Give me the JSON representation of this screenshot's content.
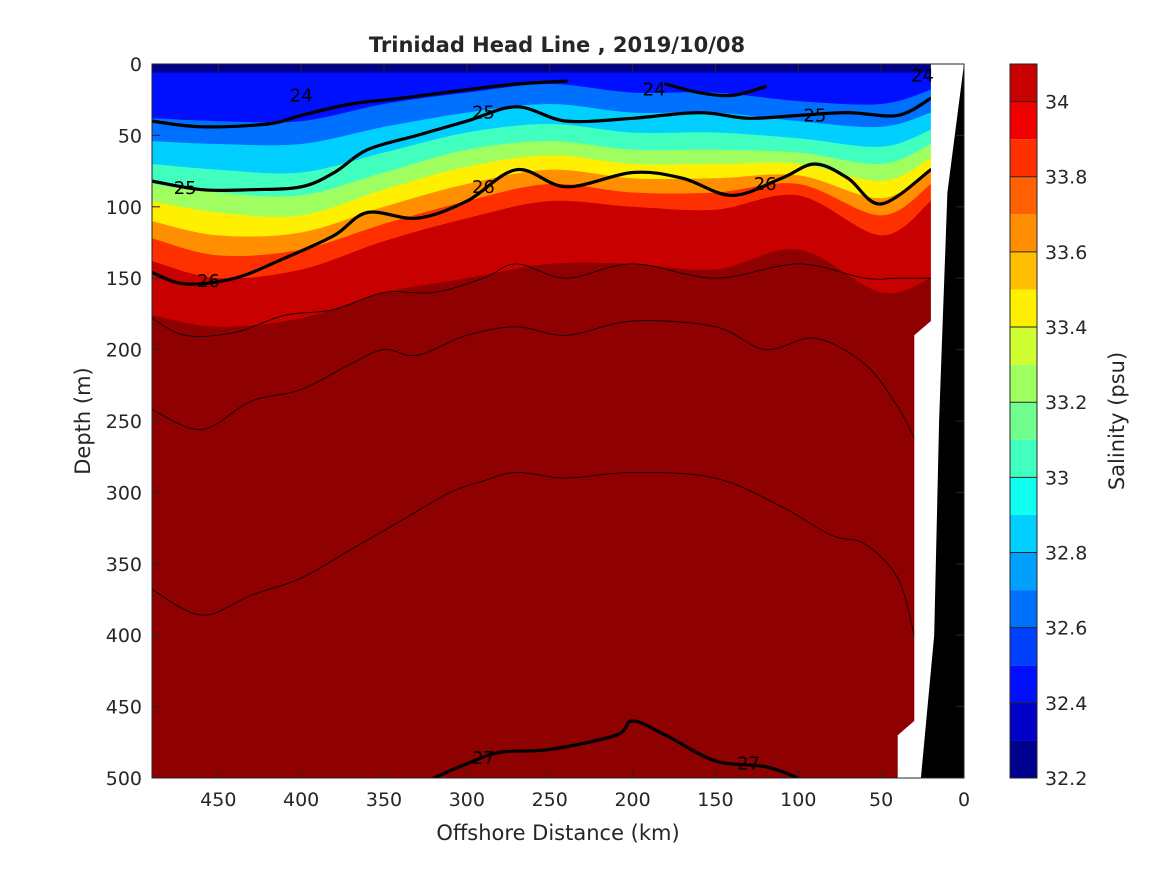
{
  "chart_data": {
    "type": "heatmap",
    "title": "Trinidad Head Line , 2019/10/08",
    "xlabel": "Offshore Distance (km)",
    "ylabel": "Depth (m)",
    "xlim": [
      490,
      0
    ],
    "ylim": [
      0,
      500
    ],
    "x_ticks": [
      "450",
      "400",
      "350",
      "300",
      "250",
      "200",
      "150",
      "100",
      "50",
      "0"
    ],
    "y_ticks": [
      "0",
      "50",
      "100",
      "150",
      "200",
      "250",
      "300",
      "350",
      "400",
      "450",
      "500"
    ],
    "colorbar": {
      "label": "Salinity (psu)",
      "range": [
        32.2,
        34.1
      ],
      "ticks": [
        "32.2",
        "32.4",
        "32.6",
        "32.8",
        "33",
        "33.2",
        "33.4",
        "33.6",
        "33.8",
        "34"
      ]
    },
    "salinity_levels": [
      {
        "min": 32.2,
        "max": 32.3,
        "color": "#00008f"
      },
      {
        "min": 32.3,
        "max": 32.4,
        "color": "#0000c8"
      },
      {
        "min": 32.4,
        "max": 32.5,
        "color": "#0010ff"
      },
      {
        "min": 32.5,
        "max": 32.6,
        "color": "#0040ff"
      },
      {
        "min": 32.6,
        "max": 32.7,
        "color": "#0070ff"
      },
      {
        "min": 32.7,
        "max": 32.8,
        "color": "#00a0ff"
      },
      {
        "min": 32.8,
        "max": 32.9,
        "color": "#00cfff"
      },
      {
        "min": 32.9,
        "max": 33.0,
        "color": "#10ffef"
      },
      {
        "min": 33.0,
        "max": 33.1,
        "color": "#40ffbf"
      },
      {
        "min": 33.1,
        "max": 33.2,
        "color": "#70ff8f"
      },
      {
        "min": 33.2,
        "max": 33.3,
        "color": "#a0ff60"
      },
      {
        "min": 33.3,
        "max": 33.4,
        "color": "#cfff30"
      },
      {
        "min": 33.4,
        "max": 33.5,
        "color": "#ffef00"
      },
      {
        "min": 33.5,
        "max": 33.6,
        "color": "#ffbf00"
      },
      {
        "min": 33.6,
        "max": 33.7,
        "color": "#ff8f00"
      },
      {
        "min": 33.7,
        "max": 33.8,
        "color": "#ff6000"
      },
      {
        "min": 33.8,
        "max": 33.9,
        "color": "#ff3000"
      },
      {
        "min": 33.9,
        "max": 34.0,
        "color": "#f00000"
      },
      {
        "min": 34.0,
        "max": 34.1,
        "color": "#c80000"
      },
      {
        "min": 34.1,
        "max": 34.2,
        "color": "#8f0000"
      }
    ],
    "salinity_profile": {
      "stations_km": [
        490,
        450,
        400,
        350,
        300,
        250,
        200,
        150,
        100,
        50,
        20
      ],
      "surface_bands": [
        {
          "salinity": 32.2,
          "depth": [
            6,
            6,
            6,
            6,
            6,
            6,
            6,
            6,
            6,
            6,
            6
          ]
        },
        {
          "salinity": 32.4,
          "depth": [
            38,
            40,
            40,
            28,
            20,
            14,
            20,
            20,
            26,
            28,
            18
          ]
        },
        {
          "salinity": 32.6,
          "depth": [
            54,
            56,
            56,
            44,
            34,
            28,
            34,
            34,
            40,
            44,
            34
          ]
        },
        {
          "salinity": 32.8,
          "depth": [
            70,
            74,
            76,
            62,
            48,
            42,
            48,
            48,
            52,
            58,
            46
          ]
        },
        {
          "salinity": 33.0,
          "depth": [
            84,
            90,
            92,
            76,
            60,
            54,
            60,
            60,
            62,
            70,
            56
          ]
        },
        {
          "salinity": 33.2,
          "depth": [
            96,
            104,
            106,
            88,
            72,
            64,
            70,
            70,
            70,
            82,
            66
          ]
        },
        {
          "salinity": 33.4,
          "depth": [
            110,
            120,
            118,
            100,
            84,
            74,
            80,
            80,
            78,
            94,
            74
          ]
        },
        {
          "salinity": 33.6,
          "depth": [
            122,
            134,
            130,
            112,
            96,
            84,
            90,
            90,
            84,
            106,
            84
          ]
        },
        {
          "salinity": 33.8,
          "depth": [
            138,
            150,
            144,
            124,
            108,
            96,
            100,
            102,
            92,
            120,
            96
          ]
        },
        {
          "salinity": 34.0,
          "depth": [
            176,
            184,
            178,
            160,
            150,
            140,
            140,
            144,
            130,
            160,
            150
          ]
        }
      ],
      "deep_salinity": 34.1,
      "saltiest_salinity": 34.2,
      "saltiest_depth": [
        500,
        500,
        500,
        500,
        430,
        400,
        400,
        450,
        460,
        470,
        480
      ]
    },
    "density_contours": [
      {
        "label": "24",
        "bold": true,
        "x": [
          490,
          460,
          420,
          400,
          370,
          340,
          300,
          270,
          240
        ],
        "depth": [
          40,
          44,
          42,
          36,
          28,
          24,
          18,
          14,
          12
        ]
      },
      {
        "label": "24",
        "bold": true,
        "x": [
          180,
          160,
          140,
          120
        ],
        "depth": [
          14,
          20,
          22,
          16
        ]
      },
      {
        "label": "25",
        "bold": true,
        "x": [
          490,
          460,
          430,
          400,
          380,
          360,
          330,
          300,
          270,
          240,
          200,
          160,
          130,
          100,
          70,
          40,
          20
        ],
        "depth": [
          82,
          88,
          88,
          86,
          76,
          60,
          50,
          40,
          30,
          40,
          38,
          34,
          38,
          36,
          34,
          36,
          24
        ]
      },
      {
        "label": "26",
        "bold": true,
        "x": [
          490,
          470,
          440,
          410,
          380,
          360,
          330,
          300,
          270,
          240,
          200,
          170,
          140,
          110,
          90,
          70,
          50,
          20
        ],
        "depth": [
          146,
          154,
          150,
          136,
          120,
          104,
          108,
          96,
          74,
          86,
          76,
          80,
          92,
          80,
          70,
          80,
          98,
          74
        ]
      },
      {
        "label": "27",
        "bold": true,
        "x": [
          320,
          300,
          280,
          250,
          210,
          200,
          180,
          150,
          120,
          100
        ],
        "depth": [
          500,
          490,
          482,
          480,
          470,
          460,
          470,
          488,
          492,
          500
        ]
      },
      {
        "label": "",
        "bold": false,
        "x": [
          490,
          470,
          440,
          410,
          380,
          350,
          320,
          290,
          270,
          240,
          200,
          150,
          100,
          60,
          40,
          20
        ],
        "depth": [
          178,
          190,
          188,
          176,
          172,
          160,
          160,
          150,
          140,
          150,
          140,
          150,
          140,
          150,
          150,
          150
        ]
      },
      {
        "label": "",
        "bold": false,
        "x": [
          490,
          460,
          430,
          400,
          370,
          350,
          330,
          300,
          270,
          240,
          200,
          150,
          120,
          90,
          60,
          40,
          30
        ],
        "depth": [
          242,
          256,
          236,
          228,
          210,
          200,
          204,
          190,
          184,
          190,
          180,
          184,
          200,
          192,
          210,
          240,
          262
        ]
      },
      {
        "label": "",
        "bold": false,
        "x": [
          490,
          460,
          430,
          400,
          370,
          340,
          310,
          290,
          270,
          240,
          200,
          150,
          110,
          80,
          60,
          40,
          30
        ],
        "depth": [
          368,
          386,
          372,
          360,
          340,
          320,
          300,
          292,
          286,
          290,
          286,
          290,
          310,
          330,
          336,
          360,
          400
        ]
      }
    ],
    "label_positions": [
      {
        "text": "24",
        "x": 400,
        "depth": 22
      },
      {
        "text": "24",
        "x": 187,
        "depth": 18
      },
      {
        "text": "24",
        "x": 25,
        "depth": 8
      },
      {
        "text": "25",
        "x": 470,
        "depth": 87
      },
      {
        "text": "25",
        "x": 290,
        "depth": 34
      },
      {
        "text": "25",
        "x": 90,
        "depth": 36
      },
      {
        "text": "26",
        "x": 456,
        "depth": 152
      },
      {
        "text": "26",
        "x": 290,
        "depth": 86
      },
      {
        "text": "26",
        "x": 120,
        "depth": 84
      },
      {
        "text": "27",
        "x": 290,
        "depth": 486
      },
      {
        "text": "27",
        "x": 130,
        "depth": 490
      }
    ],
    "bathymetry": {
      "x": [
        0,
        10,
        15,
        18,
        22,
        40,
        40,
        0
      ],
      "depth": [
        0,
        90,
        250,
        400,
        500,
        500,
        470,
        500
      ]
    }
  }
}
